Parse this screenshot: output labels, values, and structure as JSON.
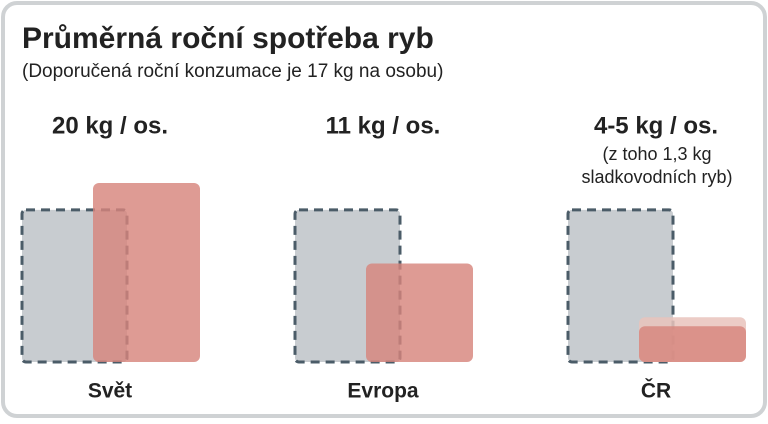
{
  "chart_data": {
    "type": "bar",
    "title": "Průměrná roční spotřeba ryb",
    "subtitle": "(Doporučená roční konzumace je 17 kg na osobu)",
    "categories": [
      "Svět",
      "Evropa",
      "ČR"
    ],
    "values": [
      20,
      11,
      4
    ],
    "upper_values": [
      null,
      null,
      5
    ],
    "value_labels": [
      "20 kg / os.",
      "11 kg / os.",
      "4-5 kg / os."
    ],
    "annotation": [
      "(z toho 1,3 kg",
      "sladkovodních ryb)"
    ],
    "reference": 17,
    "color": "#d7857c",
    "upper_color": "#e9c3bc",
    "reference_color": "#c8ccd0",
    "ylim": [
      0,
      20
    ]
  }
}
